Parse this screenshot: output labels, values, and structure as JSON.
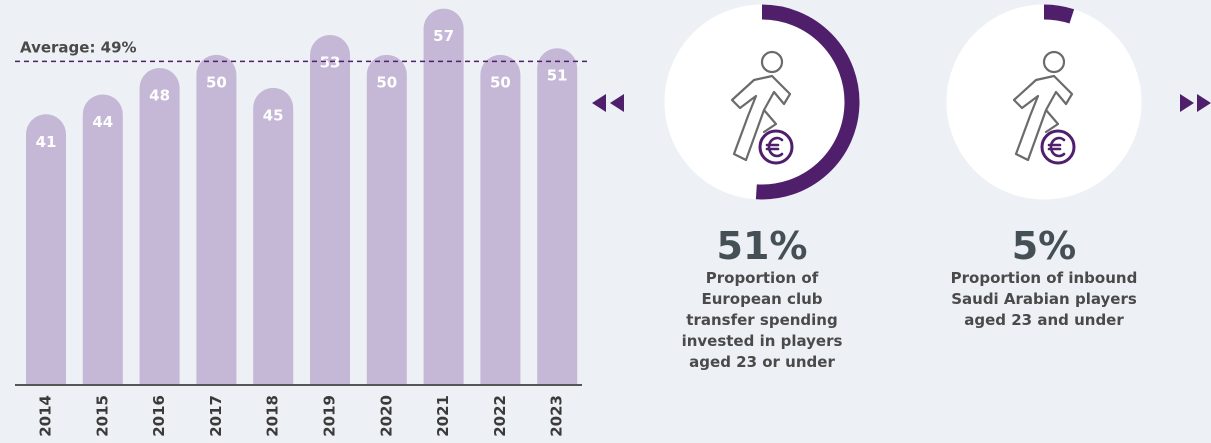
{
  "chart_data": {
    "type": "bar",
    "categories": [
      "2014",
      "2015",
      "2016",
      "2017",
      "2018",
      "2019",
      "2020",
      "2021",
      "2022",
      "2023"
    ],
    "values": [
      41,
      44,
      48,
      50,
      45,
      53,
      50,
      57,
      50,
      51
    ],
    "color": "#c5b7d6",
    "ylim": [
      0,
      58
    ],
    "average": 49,
    "average_label": "Average: 49%",
    "indicators": {
      "type": "donut",
      "color": "#4f1f6b",
      "values": [
        51,
        5
      ],
      "value_labels": [
        "51%",
        "5%"
      ],
      "descriptions": [
        "Proportion of European club transfer spending invested in players aged 23 or under",
        "Proportion of inbound Saudi Arabian players aged 23 and under"
      ]
    }
  }
}
